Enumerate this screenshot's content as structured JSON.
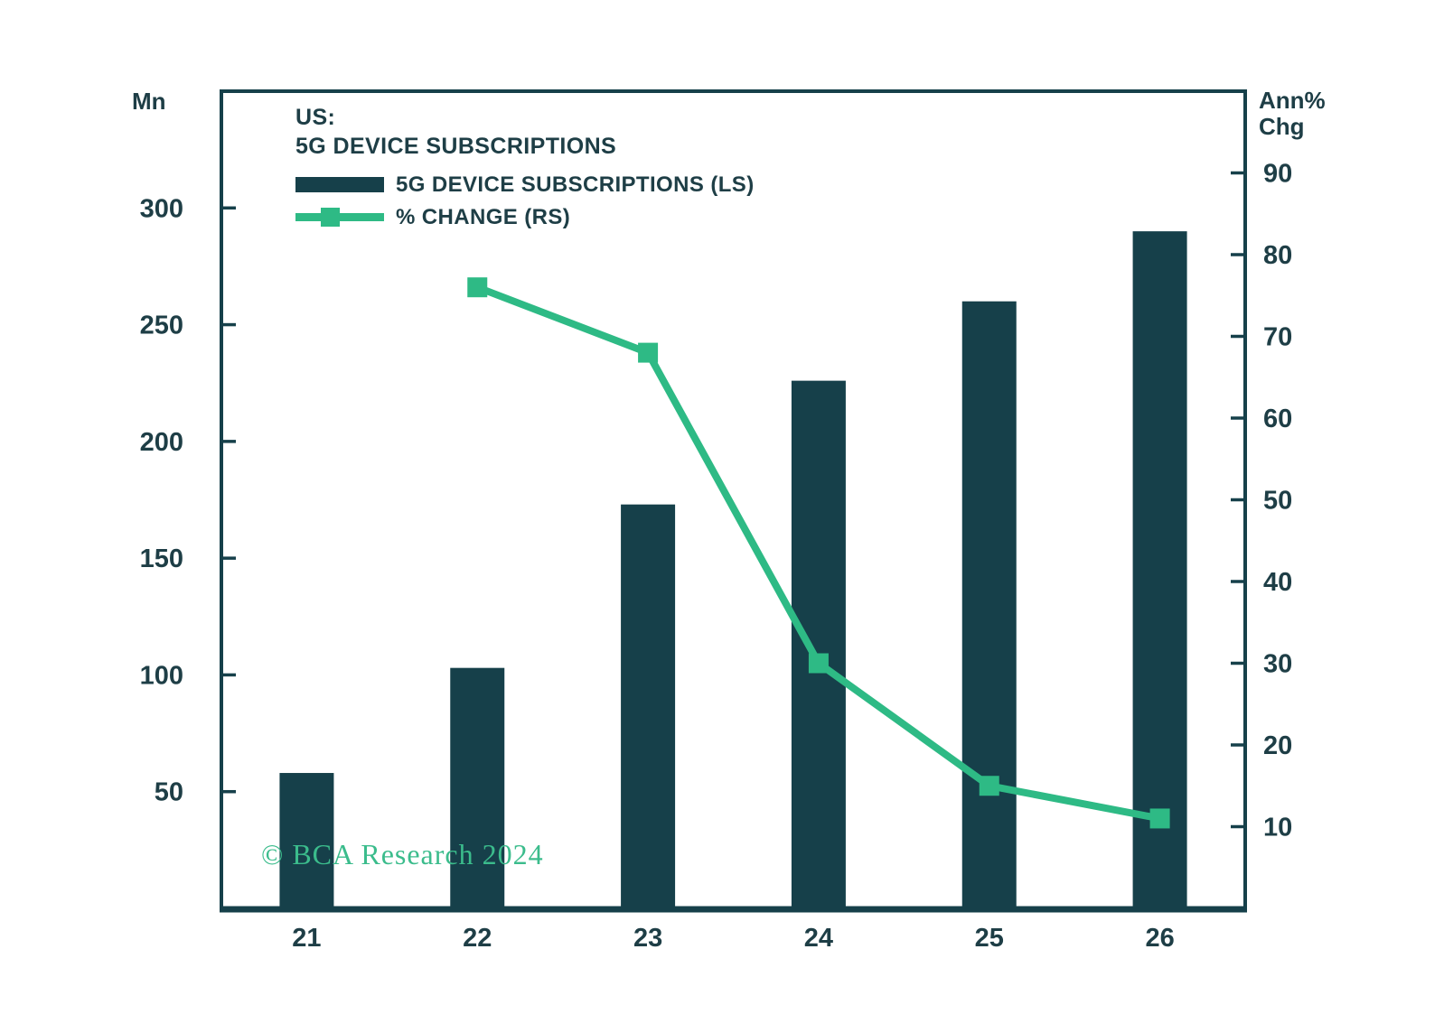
{
  "colors": {
    "dark_teal": "#16404a",
    "text_dark": "#1e3e46",
    "green": "#2eba85",
    "watermark_green": "#3bbc8c",
    "background": "#ffffff"
  },
  "title": {
    "line1": "US:",
    "line2": "5G DEVICE SUBSCRIPTIONS"
  },
  "axes_labels": {
    "left_unit": "Mn",
    "right_unit_line1": "Ann%",
    "right_unit_line2": "Chg"
  },
  "legend": [
    {
      "label": "5G DEVICE SUBSCRIPTIONS (LS)",
      "series": "bar"
    },
    {
      "label": "% CHANGE (RS)",
      "series": "line"
    }
  ],
  "watermark": "© BCA Research 2024",
  "chart_data": {
    "type": "bar",
    "subtype": "combo bar + line, dual axis",
    "title": "US: 5G DEVICE SUBSCRIPTIONS",
    "categories": [
      "21",
      "22",
      "23",
      "24",
      "25",
      "26"
    ],
    "series": [
      {
        "name": "5G DEVICE SUBSCRIPTIONS (LS)",
        "type": "bar",
        "axis": "left",
        "values": [
          58,
          103,
          173,
          226,
          260,
          290
        ]
      },
      {
        "name": "% CHANGE (RS)",
        "type": "line",
        "axis": "right",
        "marker": "square",
        "categories": [
          "22",
          "23",
          "24",
          "25",
          "26"
        ],
        "values": [
          76,
          68,
          30,
          15,
          11
        ]
      }
    ],
    "left_axis": {
      "unit": "Mn",
      "ticks": [
        50,
        100,
        150,
        200,
        250,
        300
      ],
      "range": [
        0,
        350
      ]
    },
    "right_axis": {
      "unit": "Ann% Chg",
      "ticks": [
        10,
        20,
        30,
        40,
        50,
        60,
        70,
        80,
        90
      ],
      "range": [
        0,
        100
      ]
    },
    "grid": false,
    "legend_position": "top-left inside plot"
  }
}
